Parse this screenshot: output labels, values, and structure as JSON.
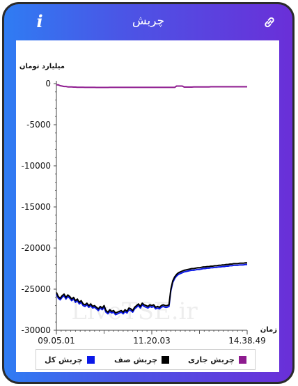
{
  "header": {
    "title": "چربش",
    "info_label": "i"
  },
  "watermark": "LiveTSE.ir",
  "chart_data": {
    "type": "line",
    "ylabel": "میلیارد تومان",
    "xlabel": "زمان",
    "ylim": [
      -30000,
      0
    ],
    "y_ticks": [
      0,
      -5000,
      -10000,
      -15000,
      -20000,
      -25000,
      -30000
    ],
    "y_tick_labels": [
      "0",
      "-5000",
      "-10000",
      "-15000",
      "-20000",
      "-25000",
      "-30000"
    ],
    "x_tick_labels": [
      "09.05.01",
      "11.20.03",
      "14.38.49"
    ],
    "x_ticks_index": [
      0,
      50,
      100
    ],
    "legend_position": "bottom",
    "series": [
      {
        "name": "چربش جاری",
        "color": "#8e1b8f",
        "values": [
          -150,
          -150,
          -250,
          -300,
          -350,
          -350,
          -400,
          -400,
          -400,
          -420,
          -420,
          -450,
          -450,
          -450,
          -450,
          -460,
          -460,
          -460,
          -460,
          -460,
          -460,
          -470,
          -470,
          -470,
          -470,
          -470,
          -470,
          -470,
          -460,
          -460,
          -460,
          -460,
          -460,
          -460,
          -460,
          -460,
          -460,
          -460,
          -460,
          -460,
          -460,
          -460,
          -460,
          -460,
          -460,
          -460,
          -460,
          -460,
          -460,
          -460,
          -460,
          -460,
          -460,
          -460,
          -460,
          -460,
          -460,
          -460,
          -460,
          -460,
          -460,
          -460,
          -460,
          -300,
          -300,
          -300,
          -300,
          -420,
          -420,
          -420,
          -420,
          -420,
          -400,
          -400,
          -400,
          -400,
          -400,
          -400,
          -400,
          -400,
          -400,
          -380,
          -380,
          -380,
          -380,
          -380,
          -380,
          -380,
          -380,
          -380,
          -380,
          -380,
          -380,
          -380,
          -380,
          -380,
          -380,
          -380,
          -380,
          -380,
          -380
        ]
      },
      {
        "name": "چربش صف",
        "color": "#000000",
        "values": [
          -25400,
          -25900,
          -26100,
          -25800,
          -25600,
          -26000,
          -25700,
          -25900,
          -26200,
          -26000,
          -26400,
          -26200,
          -26600,
          -26400,
          -26800,
          -26900,
          -26700,
          -27000,
          -26800,
          -27100,
          -27000,
          -27200,
          -27400,
          -27100,
          -27300,
          -27000,
          -27600,
          -27800,
          -27500,
          -27700,
          -27600,
          -27900,
          -27800,
          -27700,
          -27600,
          -27800,
          -27500,
          -27700,
          -27300,
          -27400,
          -27600,
          -27200,
          -27000,
          -26800,
          -27100,
          -26700,
          -26900,
          -27000,
          -27100,
          -26900,
          -27000,
          -26900,
          -27200,
          -27100,
          -27200,
          -27000,
          -26900,
          -27000,
          -27000,
          -26900,
          -25000,
          -24000,
          -23500,
          -23200,
          -23000,
          -22900,
          -22800,
          -22700,
          -22650,
          -22600,
          -22550,
          -22500,
          -22500,
          -22450,
          -22400,
          -22400,
          -22350,
          -22300,
          -22300,
          -22250,
          -22250,
          -22200,
          -22200,
          -22150,
          -22150,
          -22100,
          -22100,
          -22050,
          -22050,
          -22000,
          -22000,
          -21950,
          -21950,
          -21900,
          -21900,
          -21900,
          -21850,
          -21850,
          -21850,
          -21800,
          -21800
        ]
      },
      {
        "name": "چربش کل",
        "color": "#0a18e8",
        "values": [
          -25600,
          -26100,
          -26300,
          -26000,
          -25800,
          -26200,
          -25900,
          -26100,
          -26400,
          -26200,
          -26600,
          -26400,
          -26800,
          -26600,
          -27000,
          -27100,
          -26900,
          -27200,
          -27000,
          -27300,
          -27200,
          -27400,
          -27600,
          -27300,
          -27500,
          -27200,
          -27800,
          -28000,
          -27700,
          -27900,
          -27800,
          -28100,
          -28000,
          -27900,
          -27800,
          -28000,
          -27700,
          -27900,
          -27500,
          -27600,
          -27800,
          -27400,
          -27200,
          -27000,
          -27300,
          -26900,
          -27100,
          -27200,
          -27300,
          -27100,
          -27200,
          -27100,
          -27400,
          -27300,
          -27400,
          -27200,
          -27100,
          -27200,
          -27200,
          -27100,
          -25200,
          -24200,
          -23700,
          -23400,
          -23200,
          -23100,
          -23000,
          -22900,
          -22850,
          -22800,
          -22750,
          -22700,
          -22700,
          -22650,
          -22600,
          -22600,
          -22550,
          -22500,
          -22500,
          -22450,
          -22450,
          -22400,
          -22400,
          -22350,
          -22350,
          -22300,
          -22300,
          -22250,
          -22250,
          -22200,
          -22200,
          -22150,
          -22150,
          -22100,
          -22100,
          -22100,
          -22050,
          -22050,
          -22050,
          -22000,
          -22000
        ]
      }
    ]
  }
}
